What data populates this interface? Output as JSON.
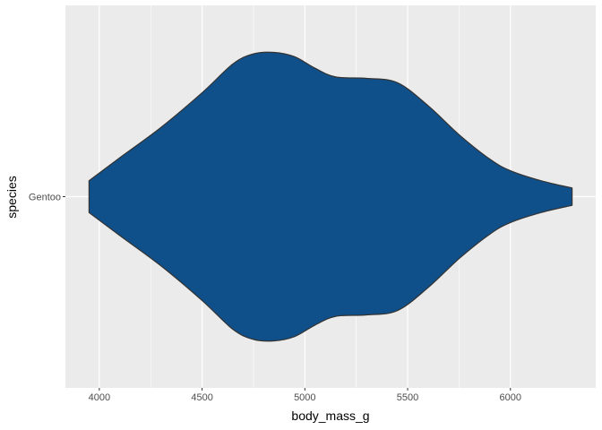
{
  "chart_data": {
    "type": "violin",
    "xlabel": "body_mass_g",
    "ylabel": "species",
    "categories": [
      "Gentoo"
    ],
    "xlim": [
      3835,
      6415
    ],
    "x_ticks": [
      4000,
      4500,
      5000,
      5500,
      6000
    ],
    "x_tick_labels": [
      "4000",
      "4500",
      "5000",
      "5500",
      "6000"
    ],
    "x_minor_ticks": [
      4250,
      4750,
      5250,
      5750
    ],
    "grid": true,
    "fill_color": "#10508A",
    "outline_color": "#333333",
    "panel_background": "#EBEBEB",
    "series": [
      {
        "category": "Gentoo",
        "density_profile": [
          {
            "x": 3950,
            "w": 0.11
          },
          {
            "x": 4100,
            "w": 0.27
          },
          {
            "x": 4300,
            "w": 0.48
          },
          {
            "x": 4500,
            "w": 0.72
          },
          {
            "x": 4650,
            "w": 0.92
          },
          {
            "x": 4750,
            "w": 0.99
          },
          {
            "x": 4850,
            "w": 1.0
          },
          {
            "x": 4950,
            "w": 0.97
          },
          {
            "x": 5050,
            "w": 0.89
          },
          {
            "x": 5150,
            "w": 0.83
          },
          {
            "x": 5300,
            "w": 0.82
          },
          {
            "x": 5450,
            "w": 0.79
          },
          {
            "x": 5600,
            "w": 0.63
          },
          {
            "x": 5750,
            "w": 0.43
          },
          {
            "x": 5900,
            "w": 0.26
          },
          {
            "x": 6000,
            "w": 0.18
          },
          {
            "x": 6150,
            "w": 0.11
          },
          {
            "x": 6300,
            "w": 0.06
          }
        ]
      }
    ]
  }
}
